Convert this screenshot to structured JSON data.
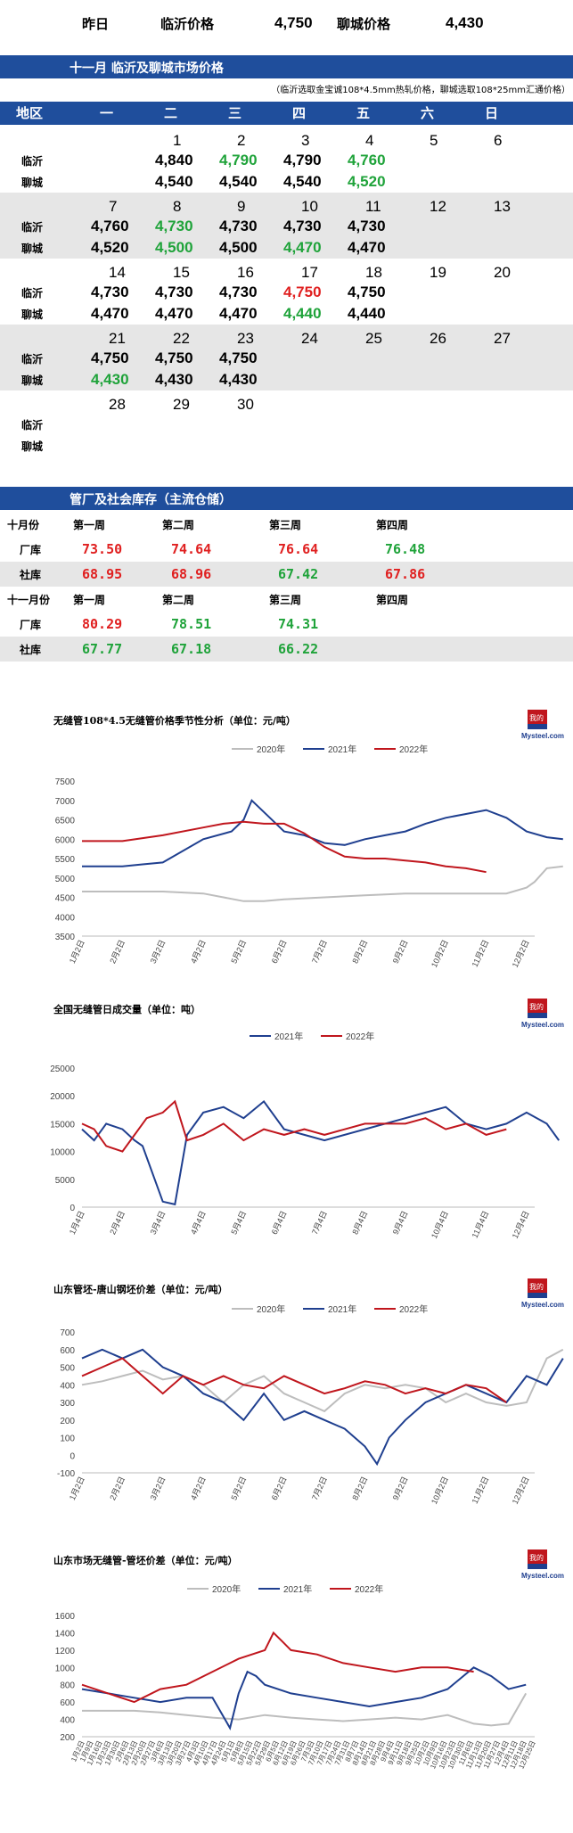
{
  "header": {
    "yesterday": "昨日",
    "linyi_label": "临沂价格",
    "linyi_value": "4,750",
    "liaocheng_label": "聊城价格",
    "liaocheng_value": "4,430"
  },
  "month_title": "十一月  临沂及聊城市场价格",
  "note": "（临沂选取金宝诚108*4.5mm热轧价格，聊城选取108*25mm汇通价格）",
  "calendar": {
    "headers": [
      "地区",
      "一",
      "二",
      "三",
      "四",
      "五",
      "六",
      "日"
    ],
    "city1": "临沂",
    "city2": "聊城",
    "weeks": [
      {
        "dates": [
          "",
          "1",
          "2",
          "3",
          "4",
          "5",
          "6"
        ],
        "linyi": [
          "",
          "4,840",
          "4,790",
          "4,790",
          "4,760",
          "",
          ""
        ],
        "linyi_colors": [
          "",
          "k",
          "g",
          "k",
          "g",
          "",
          ""
        ],
        "liaocheng": [
          "",
          "4,540",
          "4,540",
          "4,540",
          "4,520",
          "",
          ""
        ],
        "liaocheng_colors": [
          "",
          "k",
          "k",
          "k",
          "g",
          "",
          ""
        ]
      },
      {
        "dates": [
          "7",
          "8",
          "9",
          "10",
          "11",
          "12",
          "13"
        ],
        "linyi": [
          "4,760",
          "4,730",
          "4,730",
          "4,730",
          "4,730",
          "",
          ""
        ],
        "linyi_colors": [
          "k",
          "g",
          "k",
          "k",
          "k",
          "",
          ""
        ],
        "liaocheng": [
          "4,520",
          "4,500",
          "4,500",
          "4,470",
          "4,470",
          "",
          ""
        ],
        "liaocheng_colors": [
          "k",
          "g",
          "k",
          "g",
          "k",
          "",
          ""
        ]
      },
      {
        "dates": [
          "14",
          "15",
          "16",
          "17",
          "18",
          "19",
          "20"
        ],
        "linyi": [
          "4,730",
          "4,730",
          "4,730",
          "4,750",
          "4,750",
          "",
          ""
        ],
        "linyi_colors": [
          "k",
          "k",
          "k",
          "r",
          "k",
          "",
          ""
        ],
        "liaocheng": [
          "4,470",
          "4,470",
          "4,470",
          "4,440",
          "4,440",
          "",
          ""
        ],
        "liaocheng_colors": [
          "k",
          "k",
          "k",
          "g",
          "k",
          "",
          ""
        ]
      },
      {
        "dates": [
          "21",
          "22",
          "23",
          "24",
          "25",
          "26",
          "27"
        ],
        "linyi": [
          "4,750",
          "4,750",
          "4,750",
          "",
          "",
          "",
          ""
        ],
        "linyi_colors": [
          "k",
          "k",
          "k",
          "",
          "",
          "",
          ""
        ],
        "liaocheng": [
          "4,430",
          "4,430",
          "4,430",
          "",
          "",
          "",
          ""
        ],
        "liaocheng_colors": [
          "g",
          "k",
          "k",
          "",
          "",
          "",
          ""
        ]
      },
      {
        "dates": [
          "28",
          "29",
          "30",
          "",
          "",
          "",
          ""
        ],
        "linyi": [
          "",
          "",
          "",
          "",
          "",
          "",
          ""
        ],
        "linyi_colors": [
          "",
          "",
          "",
          "",
          "",
          "",
          ""
        ],
        "liaocheng": [
          "",
          "",
          "",
          "",
          "",
          "",
          ""
        ],
        "liaocheng_colors": [
          "",
          "",
          "",
          "",
          "",
          "",
          ""
        ]
      }
    ]
  },
  "inventory": {
    "title": "管厂及社会库存（主流仓储）",
    "oct_label": "十月份",
    "nov_label": "十一月份",
    "weeks": [
      "第一周",
      "第二周",
      "第三周",
      "第四周"
    ],
    "factory": "厂库",
    "social": "社库",
    "oct_factory": [
      "73.50",
      "74.64",
      "76.64",
      "76.48"
    ],
    "oct_factory_colors": [
      "r",
      "r",
      "r",
      "g"
    ],
    "oct_social": [
      "68.95",
      "68.96",
      "67.42",
      "67.86"
    ],
    "oct_social_colors": [
      "r",
      "r",
      "g",
      "r"
    ],
    "nov_factory": [
      "80.29",
      "78.51",
      "74.31",
      ""
    ],
    "nov_factory_colors": [
      "r",
      "g",
      "g",
      ""
    ],
    "nov_social": [
      "67.77",
      "67.18",
      "66.22",
      ""
    ],
    "nov_social_colors": [
      "g",
      "g",
      "g",
      ""
    ]
  },
  "colors": {
    "blue": "#1f4e9c",
    "green": "#1fa33a",
    "red": "#e02020",
    "gray": "#bdbdbd",
    "s2021": "#1f3f8f",
    "s2022": "#c0161d"
  },
  "brand": {
    "logo_text": "我的钢铁",
    "site": "Mysteel.com",
    "watermark_cn": "我的钢铁",
    "watermark_en": "Mysteel.com"
  },
  "chart_data": [
    {
      "type": "line",
      "title": "无缝管108*4.5无缝管价格季节性分析（单位：元/吨）",
      "xlabels": [
        "1月2日",
        "2月2日",
        "3月2日",
        "4月2日",
        "5月2日",
        "6月2日",
        "7月2日",
        "8月2日",
        "9月2日",
        "10月2日",
        "11月2日",
        "12月2日"
      ],
      "ylim": [
        3500,
        7500
      ],
      "yticks": [
        3500,
        4000,
        4500,
        5000,
        5500,
        6000,
        6500,
        7000,
        7500
      ],
      "series": [
        {
          "name": "2020年",
          "color": "#bdbdbd",
          "x": [
            0,
            1,
            2,
            3,
            3.5,
            4,
            4.5,
            5,
            6,
            7,
            8,
            9,
            10,
            10.5,
            11,
            11.2,
            11.5,
            11.9
          ],
          "y": [
            4650,
            4650,
            4650,
            4600,
            4500,
            4400,
            4400,
            4450,
            4500,
            4550,
            4600,
            4600,
            4600,
            4600,
            4750,
            4900,
            5250,
            5300
          ]
        },
        {
          "name": "2021年",
          "color": "#1f3f8f",
          "x": [
            0,
            1,
            1.5,
            2,
            3,
            3.7,
            4,
            4.2,
            4.5,
            5,
            5.5,
            6,
            6.5,
            7,
            7.5,
            8,
            8.5,
            9,
            9.5,
            10,
            10.5,
            11,
            11.5,
            11.9
          ],
          "y": [
            5300,
            5300,
            5350,
            5400,
            6000,
            6200,
            6500,
            7000,
            6700,
            6200,
            6100,
            5900,
            5850,
            6000,
            6100,
            6200,
            6400,
            6550,
            6650,
            6750,
            6550,
            6200,
            6050,
            6000
          ]
        },
        {
          "name": "2022年",
          "color": "#c0161d",
          "x": [
            0,
            1,
            2,
            3,
            3.5,
            4,
            4.5,
            5,
            5.5,
            6,
            6.5,
            7,
            7.5,
            8,
            8.5,
            9,
            9.5,
            10
          ],
          "y": [
            5950,
            5950,
            6100,
            6300,
            6400,
            6450,
            6400,
            6400,
            6150,
            5800,
            5550,
            5500,
            5500,
            5450,
            5400,
            5300,
            5250,
            5150
          ]
        }
      ]
    },
    {
      "type": "line",
      "title": "全国无缝管日成交量（单位：吨）",
      "xlabels": [
        "1月4日",
        "2月4日",
        "3月4日",
        "4月4日",
        "5月4日",
        "6月4日",
        "7月4日",
        "8月4日",
        "9月4日",
        "10月4日",
        "11月4日",
        "12月4日"
      ],
      "ylim": [
        0,
        25000
      ],
      "yticks": [
        0,
        5000,
        10000,
        15000,
        20000,
        25000
      ],
      "series": [
        {
          "name": "2021年",
          "color": "#1f3f8f",
          "x": [
            0,
            0.3,
            0.6,
            1,
            1.3,
            1.5,
            2,
            2.3,
            2.6,
            3,
            3.5,
            4,
            4.5,
            5,
            5.5,
            6,
            7,
            8,
            8.5,
            9,
            9.5,
            10,
            10.5,
            11,
            11.5,
            11.8
          ],
          "y": [
            14000,
            12000,
            15000,
            14000,
            12000,
            11000,
            1000,
            500,
            13000,
            17000,
            18000,
            16000,
            19000,
            14000,
            13000,
            12000,
            14000,
            16000,
            17000,
            18000,
            15000,
            14000,
            15000,
            17000,
            15000,
            12000
          ]
        },
        {
          "name": "2022年",
          "color": "#c0161d",
          "x": [
            0,
            0.3,
            0.6,
            1,
            1.3,
            1.6,
            2,
            2.3,
            2.6,
            3,
            3.5,
            4,
            4.5,
            5,
            5.5,
            6,
            7,
            8,
            8.5,
            9,
            9.5,
            10,
            10.5
          ],
          "y": [
            15000,
            14000,
            11000,
            10000,
            13000,
            16000,
            17000,
            19000,
            12000,
            13000,
            15000,
            12000,
            14000,
            13000,
            14000,
            13000,
            15000,
            15000,
            16000,
            14000,
            15000,
            13000,
            14000
          ]
        }
      ]
    },
    {
      "type": "line",
      "title": "山东管坯-唐山钢坯价差（单位：元/吨）",
      "xlabels": [
        "1月2日",
        "2月2日",
        "3月2日",
        "4月2日",
        "5月2日",
        "6月2日",
        "7月2日",
        "8月2日",
        "9月2日",
        "10月2日",
        "11月2日",
        "12月2日"
      ],
      "ylim": [
        -100,
        700
      ],
      "yticks": [
        -100,
        0,
        100,
        200,
        300,
        400,
        500,
        600,
        700
      ],
      "series": [
        {
          "name": "2020年",
          "color": "#bdbdbd",
          "x": [
            0,
            0.5,
            1,
            1.5,
            2,
            2.5,
            3,
            3.5,
            4,
            4.5,
            5,
            5.5,
            6,
            6.5,
            7,
            7.5,
            8,
            8.5,
            9,
            9.5,
            10,
            10.5,
            11,
            11.5,
            11.9
          ],
          "y": [
            400,
            420,
            450,
            480,
            430,
            450,
            400,
            300,
            400,
            450,
            350,
            300,
            250,
            350,
            400,
            380,
            400,
            380,
            300,
            350,
            300,
            280,
            300,
            550,
            600
          ]
        },
        {
          "name": "2021年",
          "color": "#1f3f8f",
          "x": [
            0,
            0.5,
            1,
            1.5,
            2,
            2.5,
            3,
            3.5,
            4,
            4.5,
            5,
            5.5,
            6,
            6.5,
            7,
            7.3,
            7.6,
            8,
            8.5,
            9,
            9.5,
            10,
            10.5,
            11,
            11.5,
            11.9
          ],
          "y": [
            550,
            600,
            550,
            600,
            500,
            450,
            350,
            300,
            200,
            350,
            200,
            250,
            200,
            150,
            50,
            -50,
            100,
            200,
            300,
            350,
            400,
            350,
            300,
            450,
            400,
            550
          ]
        },
        {
          "name": "2022年",
          "color": "#c0161d",
          "x": [
            0,
            0.5,
            1,
            1.5,
            2,
            2.5,
            3,
            3.5,
            4,
            4.5,
            5,
            5.5,
            6,
            6.5,
            7,
            7.5,
            8,
            8.5,
            9,
            9.5,
            10,
            10.5
          ],
          "y": [
            450,
            500,
            550,
            450,
            350,
            450,
            400,
            450,
            400,
            380,
            450,
            400,
            350,
            380,
            420,
            400,
            350,
            380,
            350,
            400,
            380,
            300
          ]
        }
      ]
    },
    {
      "type": "line",
      "title": "山东市场无缝管-管坯价差（单位：元/吨）",
      "xlabels": [
        "1月2日",
        "1月9日",
        "1月16日",
        "1月23日",
        "1月30日",
        "2月6日",
        "2月13日",
        "2月20日",
        "2月27日",
        "3月6日",
        "3月13日",
        "3月20日",
        "3月27日",
        "4月3日",
        "4月10日",
        "4月17日",
        "4月24日",
        "5月1日",
        "5月8日",
        "5月15日",
        "5月22日",
        "5月29日",
        "6月5日",
        "6月12日",
        "6月19日",
        "6月26日",
        "7月3日",
        "7月10日",
        "7月17日",
        "7月24日",
        "7月31日",
        "8月7日",
        "8月14日",
        "8月21日",
        "8月28日",
        "9月4日",
        "9月11日",
        "9月18日",
        "9月25日",
        "10月2日",
        "10月9日",
        "10月16日",
        "10月23日",
        "10月30日",
        "11月6日",
        "11月13日",
        "11月20日",
        "11月27日",
        "12月4日",
        "12月11日",
        "12月18日",
        "12月25日"
      ],
      "ylim": [
        200,
        1600
      ],
      "yticks": [
        200,
        400,
        600,
        800,
        1000,
        1200,
        1400,
        1600
      ],
      "series": [
        {
          "name": "2020年",
          "color": "#bdbdbd",
          "x": [
            0,
            3,
            6,
            9,
            12,
            15,
            18,
            21,
            24,
            27,
            30,
            33,
            36,
            39,
            42,
            45,
            47,
            49,
            51
          ],
          "y": [
            500,
            500,
            500,
            480,
            450,
            420,
            400,
            450,
            420,
            400,
            380,
            400,
            420,
            400,
            450,
            350,
            330,
            350,
            700
          ]
        },
        {
          "name": "2021年",
          "color": "#1f3f8f",
          "x": [
            0,
            3,
            6,
            9,
            12,
            15,
            17,
            18,
            19,
            20,
            21,
            24,
            27,
            30,
            33,
            36,
            39,
            42,
            45,
            47,
            49,
            51
          ],
          "y": [
            750,
            700,
            650,
            600,
            650,
            650,
            300,
            700,
            950,
            900,
            800,
            700,
            650,
            600,
            550,
            600,
            650,
            750,
            1000,
            900,
            750,
            800
          ]
        },
        {
          "name": "2022年",
          "color": "#c0161d",
          "x": [
            0,
            3,
            6,
            9,
            12,
            15,
            18,
            21,
            22,
            23,
            24,
            27,
            30,
            33,
            36,
            39,
            42,
            45
          ],
          "y": [
            800,
            700,
            600,
            750,
            800,
            950,
            1100,
            1200,
            1400,
            1300,
            1200,
            1150,
            1050,
            1000,
            950,
            1000,
            1000,
            950
          ]
        }
      ]
    }
  ]
}
